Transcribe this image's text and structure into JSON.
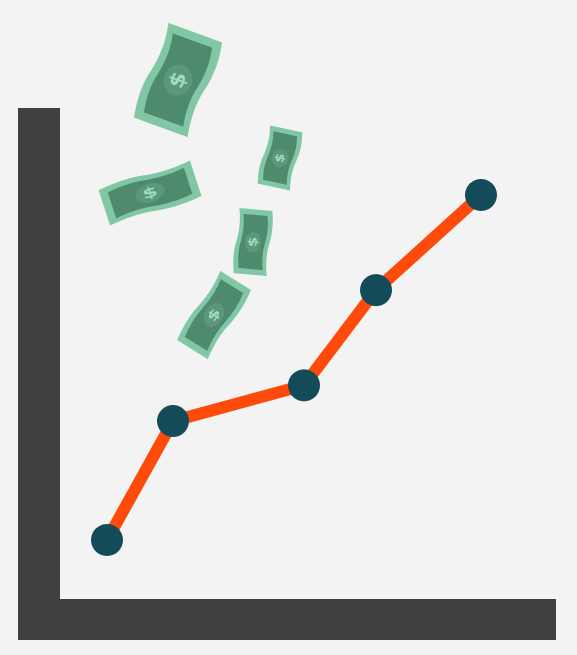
{
  "colors": {
    "background": "#f3f3f3",
    "axis": "#404040",
    "line": "#fe4a0b",
    "point": "#134b58",
    "bill_dark": "#4e8a6c",
    "bill_edge": "#82c7a4",
    "bill_ink": "#9fdcbc"
  },
  "icons": {
    "bill_symbol": "$"
  },
  "trend": {
    "values": [
      1,
      2,
      2.3,
      3.1,
      3.9
    ]
  }
}
